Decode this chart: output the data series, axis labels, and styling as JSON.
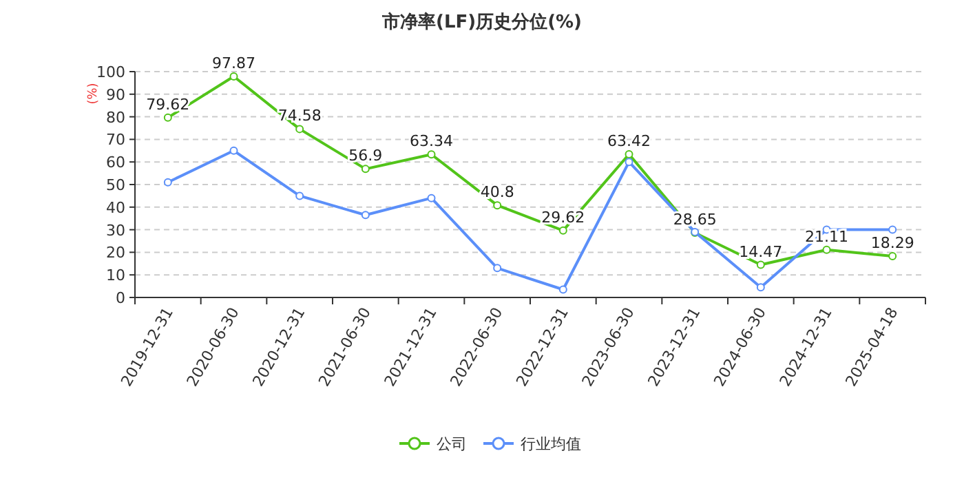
{
  "chart_data": {
    "type": "line",
    "title": "市净率(LF)历史分位(%)",
    "ylabel": "(%)",
    "categories": [
      "2019-12-31",
      "2020-06-30",
      "2020-12-31",
      "2021-06-30",
      "2021-12-31",
      "2022-06-30",
      "2022-12-31",
      "2023-06-30",
      "2023-12-31",
      "2024-06-30",
      "2024-12-31",
      "2025-04-18"
    ],
    "series": [
      {
        "name": "公司",
        "color": "#52c41a",
        "values": [
          79.62,
          97.87,
          74.58,
          56.9,
          63.34,
          40.8,
          29.62,
          63.42,
          28.65,
          14.47,
          21.11,
          18.29
        ],
        "data_labels": true
      },
      {
        "name": "行业均值",
        "color": "#5b8ff9",
        "values": [
          51,
          65,
          45,
          36.5,
          44,
          13,
          3.5,
          60,
          29,
          4.5,
          30,
          30
        ]
      }
    ],
    "ylim": [
      0,
      100
    ],
    "yticks": [
      0,
      10,
      20,
      30,
      40,
      50,
      60,
      70,
      80,
      90,
      100
    ],
    "grid": "y",
    "legend": "bottom",
    "marker": "circle",
    "line_style": "solid"
  }
}
